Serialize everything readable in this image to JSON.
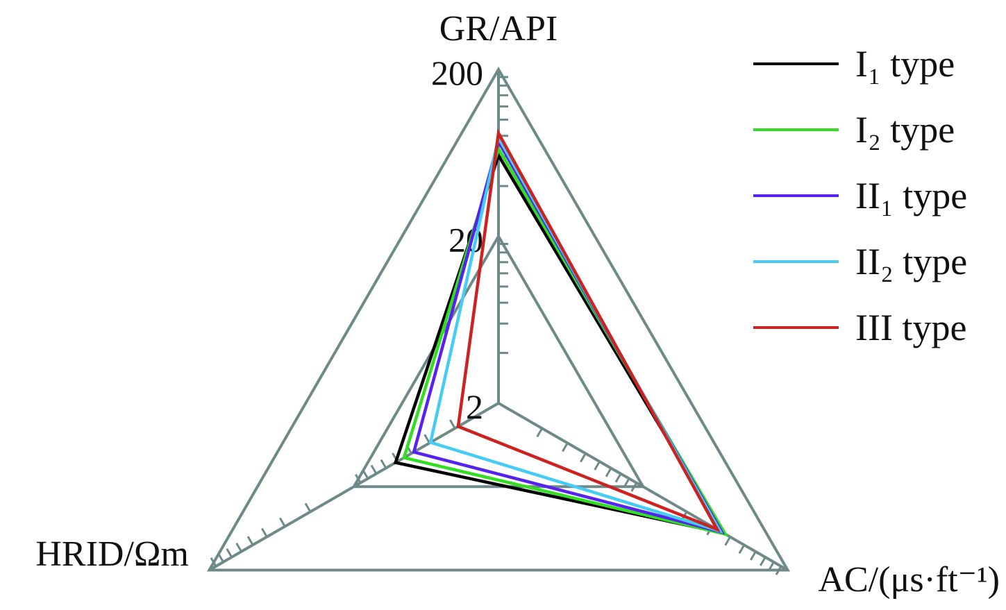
{
  "chart_data": {
    "type": "radar",
    "scale": "log",
    "axes": [
      {
        "label": "GR/API"
      },
      {
        "label": "AC/(μs·ft⁻¹)"
      },
      {
        "label": "HRID/Ωm"
      }
    ],
    "rlim": [
      2,
      200
    ],
    "tick_labels": [
      "2",
      "20",
      "200"
    ],
    "grid": true,
    "legend_position": "top-right",
    "series": [
      {
        "name": "I₁ type",
        "color": "#000000",
        "values": [
          61,
          72,
          10.3
        ]
      },
      {
        "name": "I₂ type",
        "color": "#33dd22",
        "values": [
          67,
          74,
          9.0
        ]
      },
      {
        "name": "II₁ type",
        "color": "#5522ee",
        "values": [
          74,
          70,
          7.7
        ]
      },
      {
        "name": "II₂ type",
        "color": "#44ccf5",
        "values": [
          78,
          68,
          5.9
        ]
      },
      {
        "name": "III type",
        "color": "#cc2222",
        "values": [
          83,
          65,
          3.8
        ]
      }
    ]
  }
}
